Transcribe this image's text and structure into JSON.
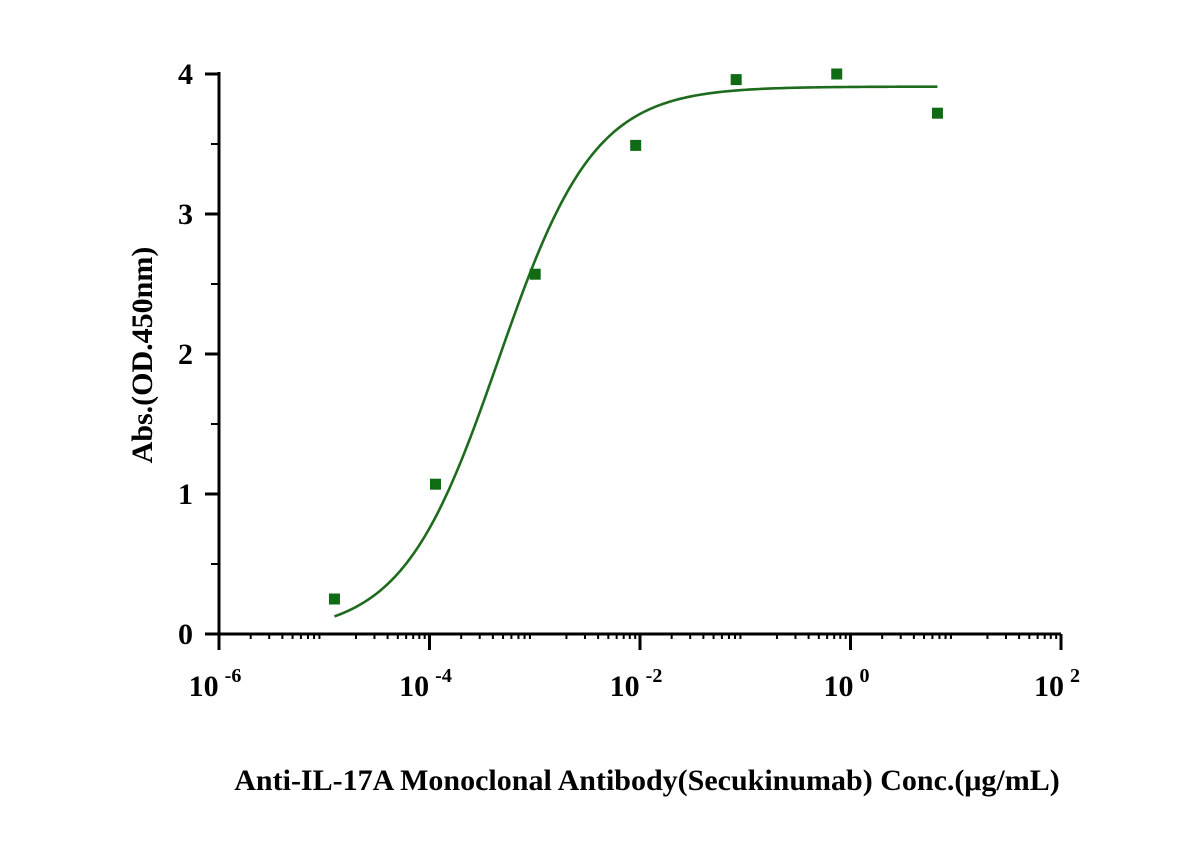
{
  "chart_data": {
    "type": "scatter",
    "title": "",
    "xlabel": "Anti-IL-17A Monoclonal Antibody(Secukinumab) Conc.(μg/mL)",
    "ylabel": "Abs.(OD.450nm)",
    "x_scale": "log10",
    "xlim": [
      1e-06,
      100
    ],
    "ylim": [
      0,
      4
    ],
    "x_ticks": [
      {
        "value": 1e-06,
        "base": "10",
        "exp": "-6"
      },
      {
        "value": 0.0001,
        "base": "10",
        "exp": "-4"
      },
      {
        "value": 0.01,
        "base": "10",
        "exp": "-2"
      },
      {
        "value": 1,
        "base": "10",
        "exp": "0"
      },
      {
        "value": 100,
        "base": "10",
        "exp": "2"
      }
    ],
    "y_ticks": [
      "0",
      "1",
      "2",
      "3",
      "4"
    ],
    "marker_color": "#0f6b14",
    "curve_color": "#1e6b1e",
    "points": [
      {
        "x": 1.25e-05,
        "y": 0.25
      },
      {
        "x": 0.000114,
        "y": 1.07
      },
      {
        "x": 0.00101,
        "y": 2.57
      },
      {
        "x": 0.0091,
        "y": 3.49
      },
      {
        "x": 0.082,
        "y": 3.96
      },
      {
        "x": 0.74,
        "y": 4.0
      },
      {
        "x": 6.7,
        "y": 3.72
      }
    ],
    "fit": {
      "model": "4PL",
      "bottom": 0.0,
      "top": 3.91,
      "ec50": 0.00045,
      "hill": 0.95,
      "x_range": [
        1.25e-05,
        6.7
      ]
    },
    "grid": false,
    "legend": "none"
  }
}
